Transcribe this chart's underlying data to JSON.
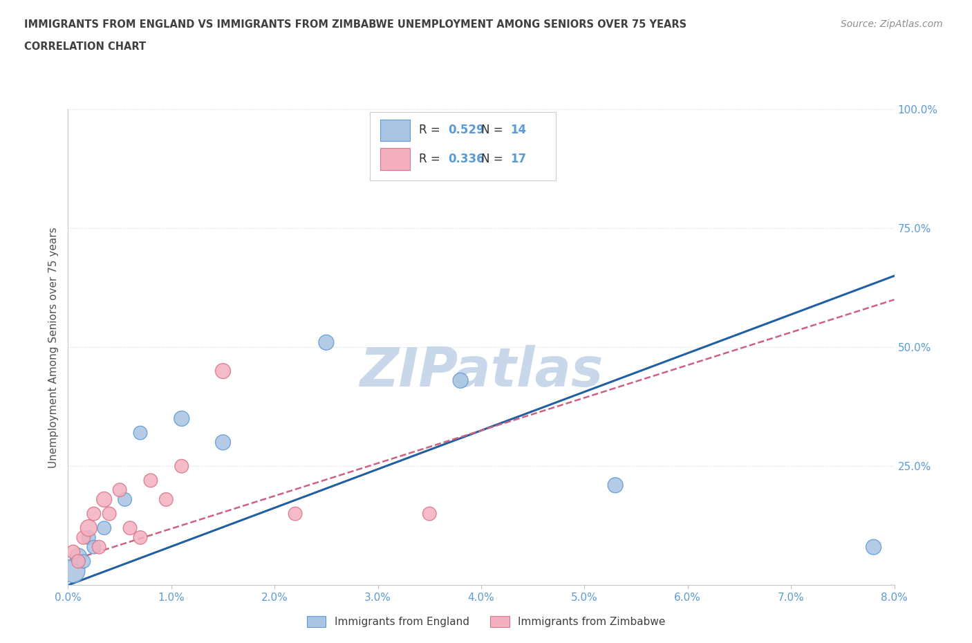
{
  "title_line1": "IMMIGRANTS FROM ENGLAND VS IMMIGRANTS FROM ZIMBABWE UNEMPLOYMENT AMONG SENIORS OVER 75 YEARS",
  "title_line2": "CORRELATION CHART",
  "source_text": "Source: ZipAtlas.com",
  "ylabel": "Unemployment Among Seniors over 75 years",
  "xlim": [
    0.0,
    8.0
  ],
  "ylim": [
    0.0,
    100.0
  ],
  "xticks": [
    0.0,
    1.0,
    2.0,
    3.0,
    4.0,
    5.0,
    6.0,
    7.0,
    8.0
  ],
  "yticks": [
    0.0,
    25.0,
    50.0,
    75.0,
    100.0
  ],
  "xticklabels": [
    "0.0%",
    "1.0%",
    "2.0%",
    "3.0%",
    "4.0%",
    "5.0%",
    "6.0%",
    "7.0%",
    "8.0%"
  ],
  "yticklabels_right": [
    "",
    "25.0%",
    "50.0%",
    "75.0%",
    "100.0%"
  ],
  "england_color": "#aac4e2",
  "england_edge_color": "#5b9bd5",
  "zimbabwe_color": "#f4b0c0",
  "zimbabwe_edge_color": "#d9748a",
  "trendline_england_color": "#2060a0",
  "trendline_zimbabwe_color": "#d06080",
  "R_england": 0.529,
  "N_england": 14,
  "R_zimbabwe": 0.336,
  "N_zimbabwe": 17,
  "watermark": "ZIPatlas",
  "watermark_color": "#c8d8ea",
  "england_x": [
    0.05,
    0.1,
    0.15,
    0.2,
    0.25,
    0.35,
    0.55,
    0.7,
    1.1,
    1.5,
    2.5,
    3.8,
    5.3,
    7.8
  ],
  "england_y": [
    3,
    6,
    5,
    10,
    8,
    12,
    18,
    32,
    35,
    30,
    51,
    43,
    21,
    8
  ],
  "zimbabwe_x": [
    0.05,
    0.1,
    0.15,
    0.2,
    0.25,
    0.3,
    0.35,
    0.4,
    0.5,
    0.6,
    0.7,
    0.8,
    0.95,
    1.1,
    1.5,
    2.2,
    3.5
  ],
  "zimbabwe_y": [
    7,
    5,
    10,
    12,
    15,
    8,
    18,
    15,
    20,
    12,
    10,
    22,
    18,
    25,
    45,
    15,
    15
  ],
  "england_sizes": [
    600,
    300,
    200,
    200,
    200,
    200,
    200,
    200,
    250,
    250,
    250,
    250,
    250,
    250
  ],
  "zimbabwe_sizes": [
    200,
    200,
    200,
    300,
    200,
    200,
    250,
    200,
    200,
    200,
    200,
    200,
    200,
    200,
    250,
    200,
    200
  ],
  "background_color": "#ffffff",
  "grid_color": "#d0d8e0",
  "axis_color": "#c0c8d0",
  "tick_label_color": "#5b9bd5",
  "title_color": "#404040",
  "legend_label_color": "#404040"
}
